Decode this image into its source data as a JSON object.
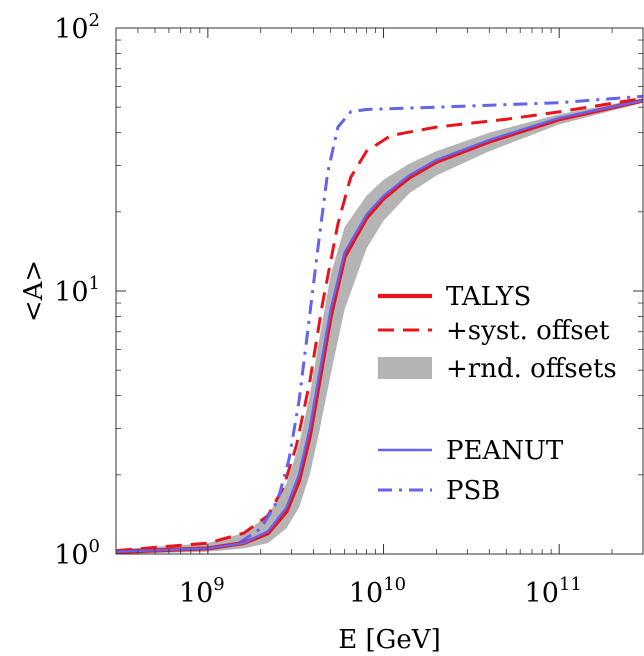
{
  "chart_data": {
    "type": "line",
    "title": "",
    "xlabel": "E [GeV]",
    "ylabel": "<A>",
    "xscale": "log",
    "yscale": "log",
    "xlim": [
      300000000,
      300000000000
    ],
    "ylim": [
      1,
      100
    ],
    "x_ticks": [
      {
        "value": 1000000000,
        "base": "10",
        "exp": "9"
      },
      {
        "value": 10000000000,
        "base": "10",
        "exp": "10"
      },
      {
        "value": 100000000000,
        "base": "10",
        "exp": "11"
      }
    ],
    "y_ticks": [
      {
        "value": 1,
        "base": "10",
        "exp": "0"
      },
      {
        "value": 10,
        "base": "10",
        "exp": "1"
      },
      {
        "value": 100,
        "base": "10",
        "exp": "2"
      }
    ],
    "grid": false,
    "legend_position": "center-right",
    "series": [
      {
        "name": "TALYS",
        "style": "solid-thick",
        "color": "#e8141b",
        "x": [
          300000000,
          1000000000,
          1600000000,
          2200000000,
          2800000000,
          3300000000,
          3800000000,
          4300000000,
          5000000000,
          6000000000,
          8000000000,
          10000000000,
          14000000000,
          20000000000,
          40000000000,
          100000000000,
          300000000000
        ],
        "y": [
          1.02,
          1.05,
          1.1,
          1.2,
          1.45,
          1.9,
          2.8,
          4.5,
          8.0,
          13.5,
          19.0,
          22.5,
          27.0,
          31.0,
          37.0,
          45.0,
          53.0
        ]
      },
      {
        "name": "+syst. offset",
        "style": "dashed",
        "color": "#e8141b",
        "x": [
          300000000,
          1000000000,
          1600000000,
          2200000000,
          2700000000,
          3200000000,
          3800000000,
          4500000000,
          5500000000,
          6500000000,
          8000000000,
          11000000000,
          20000000000,
          50000000000,
          100000000000,
          300000000000
        ],
        "y": [
          1.03,
          1.1,
          1.2,
          1.4,
          1.8,
          2.6,
          4.5,
          9.0,
          18.0,
          27.0,
          34.0,
          39.0,
          42.0,
          45.0,
          48.0,
          54.0
        ]
      },
      {
        "name": "+rnd. offsets",
        "style": "band",
        "color": "#b4b4b4",
        "x": [
          300000000,
          1000000000,
          1600000000,
          2200000000,
          2800000000,
          3300000000,
          3800000000,
          4300000000,
          5000000000,
          6000000000,
          8000000000,
          10000000000,
          14000000000,
          20000000000,
          40000000000,
          100000000000,
          300000000000
        ],
        "y_low": [
          1.0,
          1.02,
          1.05,
          1.1,
          1.25,
          1.5,
          2.0,
          2.9,
          4.8,
          8.5,
          14.5,
          18.5,
          23.5,
          27.5,
          34.0,
          43.0,
          52.0
        ],
        "y_high": [
          1.04,
          1.1,
          1.2,
          1.4,
          1.85,
          2.6,
          4.0,
          6.5,
          11.5,
          17.5,
          23.0,
          26.5,
          30.5,
          34.0,
          40.0,
          47.0,
          54.0
        ]
      },
      {
        "name": "PEANUT",
        "style": "solid",
        "color": "#6363f0",
        "x": [
          300000000,
          1000000000,
          1600000000,
          2200000000,
          2800000000,
          3300000000,
          3800000000,
          4300000000,
          5000000000,
          6000000000,
          8000000000,
          10000000000,
          14000000000,
          20000000000,
          40000000000,
          100000000000,
          300000000000
        ],
        "y": [
          1.02,
          1.05,
          1.1,
          1.22,
          1.5,
          2.0,
          3.0,
          4.8,
          8.5,
          14.0,
          19.5,
          23.0,
          27.5,
          31.5,
          37.5,
          45.5,
          53.0
        ]
      },
      {
        "name": "PSB",
        "style": "dash-dot",
        "color": "#6363f0",
        "x": [
          300000000,
          1000000000,
          1500000000,
          2000000000,
          2500000000,
          2900000000,
          3300000000,
          3700000000,
          4200000000,
          4800000000,
          5500000000,
          6500000000,
          8000000000,
          20000000000,
          100000000000,
          300000000000
        ],
        "y": [
          1.02,
          1.05,
          1.1,
          1.25,
          1.6,
          2.3,
          3.8,
          7.0,
          14.0,
          28.0,
          42.0,
          48.0,
          49.0,
          50.0,
          52.0,
          55.0
        ]
      }
    ],
    "legend": [
      {
        "label": "TALYS",
        "style": "solid-thick",
        "color": "#e8141b"
      },
      {
        "label": "+syst. offset",
        "style": "dashed",
        "color": "#e8141b"
      },
      {
        "label": "+rnd. offsets",
        "style": "band",
        "color": "#b4b4b4"
      },
      {
        "label": "",
        "style": "spacer",
        "color": ""
      },
      {
        "label": "PEANUT",
        "style": "solid",
        "color": "#6363f0"
      },
      {
        "label": "PSB",
        "style": "dash-dot",
        "color": "#6363f0"
      }
    ]
  }
}
